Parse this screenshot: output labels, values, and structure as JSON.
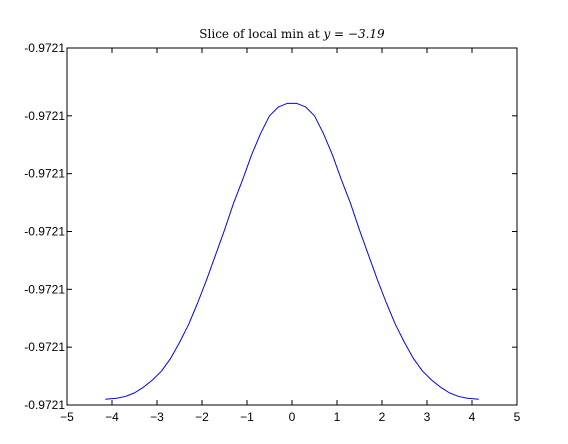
{
  "chart_data": {
    "type": "line",
    "title": {
      "prefix": "Slice of local min at ",
      "variable": "y",
      "equals": " = ",
      "value": "−3.19"
    },
    "xlabel": "",
    "ylabel": "",
    "xlim": [
      -5,
      5
    ],
    "ylim": [
      0,
      1
    ],
    "x_ticks": [
      -5,
      -4,
      -3,
      -2,
      -1,
      0,
      1,
      2,
      3,
      4,
      5
    ],
    "x_tick_labels": [
      "−5",
      "−4",
      "−3",
      "−2",
      "−1",
      "0",
      "1",
      "2",
      "3",
      "4",
      "5"
    ],
    "y_ticks": [
      0,
      0.162,
      0.324,
      0.486,
      0.648,
      0.81,
      1.0
    ],
    "y_tick_labels": [
      "-0.9721",
      "-0.9721",
      "-0.9721",
      "-0.9721",
      "-0.9721",
      "-0.9721",
      "-0.9721"
    ],
    "grid": false,
    "legend": "none",
    "series": [
      {
        "color": "#0000ff",
        "x": [
          -4.15,
          -3.9,
          -3.7,
          -3.5,
          -3.3,
          -3.1,
          -2.9,
          -2.7,
          -2.5,
          -2.3,
          -2.1,
          -1.9,
          -1.7,
          -1.5,
          -1.3,
          -1.1,
          -0.9,
          -0.7,
          -0.5,
          -0.3,
          -0.1,
          0.1,
          0.3,
          0.5,
          0.7,
          0.9,
          1.1,
          1.3,
          1.5,
          1.7,
          1.9,
          2.1,
          2.3,
          2.5,
          2.7,
          2.9,
          3.1,
          3.3,
          3.5,
          3.7,
          3.9,
          4.15
        ],
        "y": [
          0.016,
          0.019,
          0.024,
          0.034,
          0.05,
          0.07,
          0.095,
          0.13,
          0.175,
          0.225,
          0.285,
          0.35,
          0.42,
          0.49,
          0.565,
          0.63,
          0.7,
          0.76,
          0.81,
          0.835,
          0.845,
          0.845,
          0.835,
          0.81,
          0.76,
          0.7,
          0.63,
          0.565,
          0.49,
          0.42,
          0.35,
          0.285,
          0.225,
          0.175,
          0.13,
          0.095,
          0.07,
          0.05,
          0.034,
          0.024,
          0.019,
          0.016
        ]
      }
    ]
  }
}
